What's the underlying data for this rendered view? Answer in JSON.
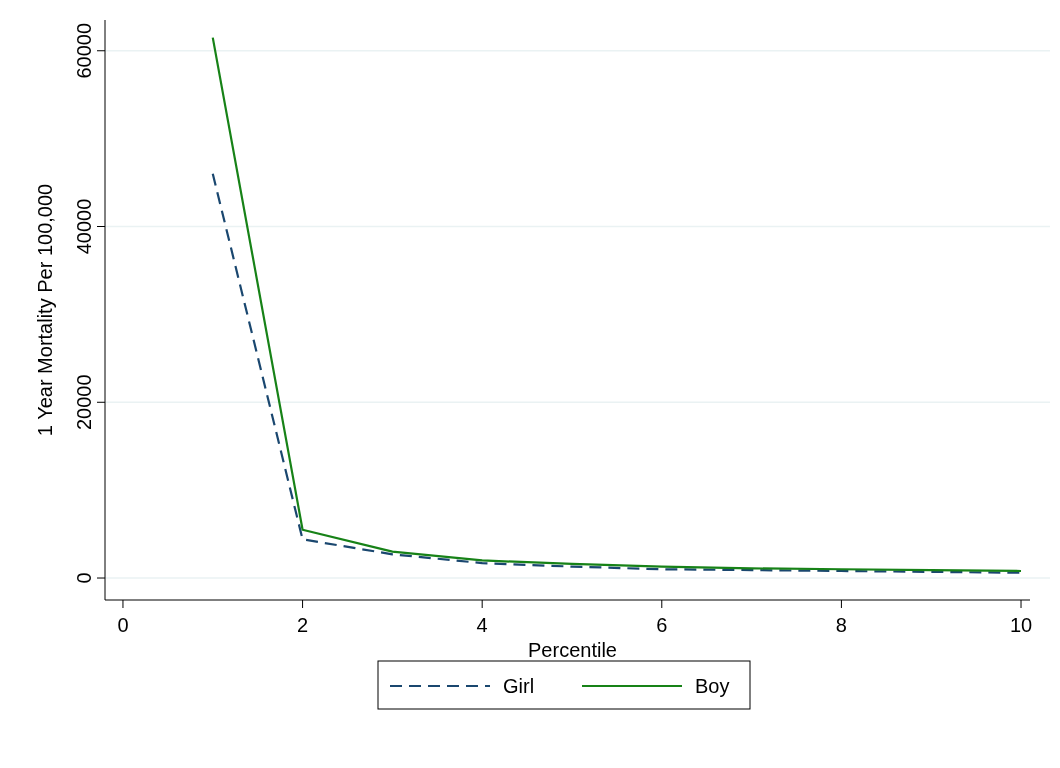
{
  "chart_data": {
    "type": "line",
    "xlabel": "Percentile",
    "ylabel": "1 Year Mortality Per 100,000",
    "x": [
      1,
      2,
      3,
      4,
      5,
      6,
      7,
      8,
      9,
      10
    ],
    "series": [
      {
        "name": "Girl",
        "color": "#1a476f",
        "line_style": "dashed",
        "values": [
          46000,
          4400,
          2700,
          1700,
          1300,
          1000,
          900,
          800,
          700,
          600
        ]
      },
      {
        "name": "Boy",
        "color": "#178217",
        "line_style": "solid",
        "values": [
          61500,
          5500,
          3000,
          2000,
          1600,
          1300,
          1100,
          1000,
          900,
          800
        ]
      }
    ],
    "xlim": [
      -0.2,
      10.1
    ],
    "xticks": [
      0,
      2,
      4,
      6,
      8,
      10
    ],
    "ylim": [
      -2500,
      63500
    ],
    "yticks": [
      0,
      20000,
      40000,
      60000
    ],
    "grid": "y",
    "legend": "bottom"
  }
}
